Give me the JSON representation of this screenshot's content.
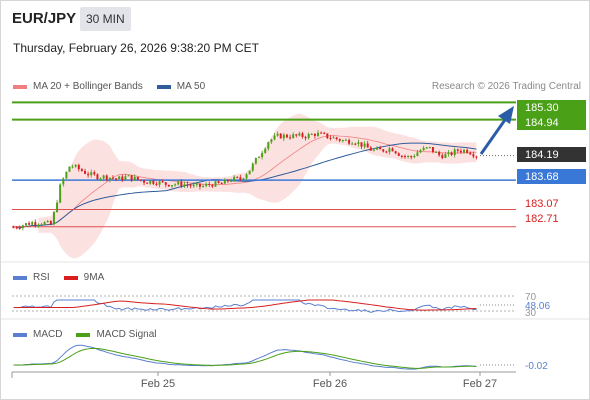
{
  "header": {
    "symbol": "EUR/JPY",
    "timeframe": "30 MIN",
    "datetime": "Thursday, February 26, 2026 9:38:20 PM CET"
  },
  "legend": {
    "items": [
      {
        "label": "MA 20 + Bollinger Bands",
        "color": "#f08080"
      },
      {
        "label": "MA 50",
        "color": "#2f5c9a"
      }
    ],
    "credit": "Research © 2026 Trading Central"
  },
  "price_levels": {
    "resistance": [
      {
        "label": "185.30",
        "value": 185.3,
        "color": "#4aa017"
      },
      {
        "label": "184.94",
        "value": 184.94,
        "color": "#4aa017"
      }
    ],
    "current": {
      "label": "184.19",
      "value": 184.19,
      "color": "#333333"
    },
    "pivot": {
      "label": "183.68",
      "value": 183.68,
      "color": "#3a78d8"
    },
    "support": [
      {
        "label": "183.07",
        "value": 183.07,
        "color": "#e05050"
      },
      {
        "label": "182.71",
        "value": 182.71,
        "color": "#e05050"
      }
    ]
  },
  "rsi_panel": {
    "legend": [
      {
        "label": "RSI",
        "color": "#5a7fd0"
      },
      {
        "label": "9MA",
        "color": "#d81e1e"
      }
    ],
    "upper_label": "70",
    "value_label": "48.06",
    "lower_label": "30"
  },
  "macd_panel": {
    "legend": [
      {
        "label": "MACD",
        "color": "#5a7fd0"
      },
      {
        "label": "MACD Signal",
        "color": "#4aa017"
      }
    ],
    "value_label": "-0.02"
  },
  "x_axis": {
    "labels": [
      "Feb 25",
      "Feb 26",
      "Feb 27"
    ]
  },
  "colors": {
    "up_candle": "#4aa017",
    "down_candle": "#d81e1e",
    "band_fill": "#fbd9d9",
    "ma20": "#f08080",
    "ma50": "#2f5c9a",
    "arrow": "#2b5ca8"
  },
  "chart_data": {
    "type": "line",
    "title": "EUR/JPY",
    "ylim": [
      182.6,
      185.35
    ],
    "levels": [
      185.3,
      184.94,
      184.19,
      183.68,
      183.07,
      182.71
    ],
    "close_series": [
      182.7,
      182.75,
      182.8,
      182.8,
      182.75,
      183.6,
      184.0,
      183.9,
      183.8,
      183.75,
      183.75,
      183.7,
      183.75,
      183.7,
      183.65,
      183.65,
      183.6,
      183.6,
      183.6,
      183.55,
      183.55,
      183.6,
      183.6,
      183.7,
      183.7,
      183.9,
      184.2,
      184.5,
      184.6,
      184.6,
      184.6,
      184.6,
      184.65,
      184.6,
      184.55,
      184.5,
      184.5,
      184.4,
      184.3,
      184.3,
      184.35,
      184.2,
      184.15,
      184.3,
      184.35,
      184.2,
      184.2,
      184.3,
      184.3,
      184.2
    ]
  }
}
